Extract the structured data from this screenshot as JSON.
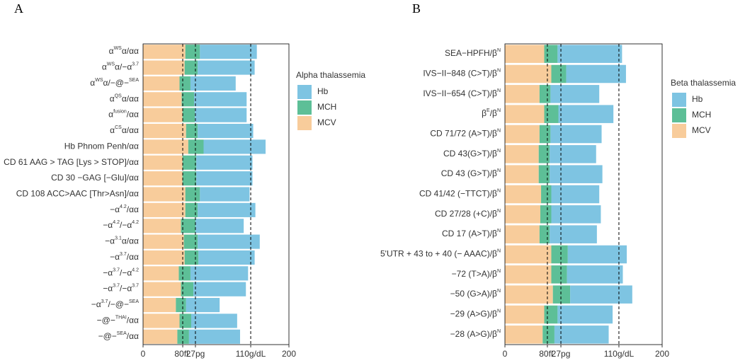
{
  "chart_data": [
    {
      "type": "bar",
      "orientation": "horizontal",
      "stacked": true,
      "title": "A",
      "legend_title": "Alpha thalassemia",
      "categories": [
        [
          "α",
          {
            "sup": "WS"
          },
          "α/αα"
        ],
        [
          "α",
          {
            "sup": "WS"
          },
          "α/−α",
          {
            "sup": "3.7"
          }
        ],
        [
          "α",
          {
            "sup": "WS"
          },
          "α/−@−",
          {
            "sup": "SEA"
          }
        ],
        [
          "α",
          {
            "sup": "QS"
          },
          "α/αα"
        ],
        [
          "α",
          {
            "sup": "fusion"
          },
          "/αα"
        ],
        [
          "α",
          {
            "sup": "CS"
          },
          "α/αα"
        ],
        [
          "Hb Phnom Penh/αα"
        ],
        [
          "CD 61 AAG > TAG [Lys > STOP]/αα"
        ],
        [
          "CD 30 −GAG [−Glu]/αα"
        ],
        [
          "CD 108 ACC>AAC [Thr>Asn]/αα"
        ],
        [
          "−α",
          {
            "sup": "4.2"
          },
          "/αα"
        ],
        [
          "−α",
          {
            "sup": "4.2"
          },
          "/−α",
          {
            "sup": "4.2"
          }
        ],
        [
          "−α",
          {
            "sup": "3.1"
          },
          "α/αα"
        ],
        [
          "−α",
          {
            "sup": "3.7"
          },
          "/αα"
        ],
        [
          "−α",
          {
            "sup": "3.7"
          },
          "/−α",
          {
            "sup": "4.2"
          }
        ],
        [
          "−α",
          {
            "sup": "3.7"
          },
          "/−α",
          {
            "sup": "3.7"
          }
        ],
        [
          "−α",
          {
            "sup": "3.7"
          },
          "/−@−",
          {
            "sup": "SEA"
          }
        ],
        [
          "−@−",
          {
            "sup": "THAI"
          },
          "/αα"
        ],
        [
          "−@−",
          {
            "sup": "SEA"
          },
          "/αα"
        ]
      ],
      "series": [
        {
          "name": "Hb",
          "color": "#7ec4e2",
          "values": [
            78,
            78,
            62,
            72,
            71,
            76,
            85,
            77,
            77,
            68,
            79,
            66,
            85,
            77,
            79,
            72,
            46,
            63,
            70
          ]
        },
        {
          "name": "MCH",
          "color": "#5dbf97",
          "values": [
            20,
            18,
            15,
            17,
            17,
            16,
            21,
            19,
            19,
            20,
            17,
            20,
            19,
            19,
            16,
            17,
            14,
            16,
            16
          ]
        },
        {
          "name": "MCV",
          "color": "#f8cc9b",
          "values": [
            58,
            57,
            50,
            53,
            54,
            59,
            62,
            54,
            54,
            58,
            58,
            52,
            56,
            57,
            49,
            52,
            45,
            50,
            47
          ]
        }
      ],
      "xlim": [
        0,
        200
      ],
      "xticks": [
        0,
        {
          "value": 54.4,
          "label": "80fL"
        },
        {
          "value": 71.8,
          "label": "27pg"
        },
        {
          "value": 147.6,
          "label": "110g/dL"
        },
        200
      ]
    },
    {
      "type": "bar",
      "orientation": "horizontal",
      "stacked": true,
      "title": "B",
      "legend_title": "Beta thalassemia",
      "categories": [
        [
          "SEA−HPFH/β",
          {
            "sup": "N"
          }
        ],
        [
          "IVS−II−848 (C>T)/β",
          {
            "sup": "N"
          }
        ],
        [
          "IVS−II−654 (C>T)/β",
          {
            "sup": "N"
          }
        ],
        [
          "β",
          {
            "sup": "E"
          },
          "/β",
          {
            "sup": "N"
          }
        ],
        [
          "CD 71/72 (A>T)/β",
          {
            "sup": "N"
          }
        ],
        [
          "CD 43(G>T)/β",
          {
            "sup": "N"
          }
        ],
        [
          "CD 43 (G>T)/β",
          {
            "sup": "N"
          }
        ],
        [
          "CD 41/42 (−TTCT)/β",
          {
            "sup": "N"
          }
        ],
        [
          "CD 27/28 (+C)/β",
          {
            "sup": "N"
          }
        ],
        [
          "CD 17 (A>T)/β",
          {
            "sup": "N"
          }
        ],
        [
          "5'UTR + 43 to + 40 (− AAAC)/β",
          {
            "sup": "N"
          }
        ],
        [
          "−72 (T>A)/β",
          {
            "sup": "N"
          }
        ],
        [
          "−50 (G>A)/β",
          {
            "sup": "N"
          }
        ],
        [
          "−29 (A>G)/β",
          {
            "sup": "N"
          }
        ],
        [
          "−28 (A>G)/β",
          {
            "sup": "N"
          }
        ]
      ],
      "series": [
        {
          "name": "Hb",
          "color": "#7ec4e2",
          "values": [
            82,
            76,
            62,
            70,
            65,
            59,
            67,
            61,
            63,
            60,
            75,
            71,
            79,
            70,
            69
          ]
        },
        {
          "name": "MCH",
          "color": "#5dbf97",
          "values": [
            17,
            19,
            14,
            18,
            14,
            14,
            14,
            13,
            14,
            13,
            21,
            20,
            22,
            17,
            15
          ]
        },
        {
          "name": "MCV",
          "color": "#f8cc9b",
          "values": [
            50,
            59,
            44,
            50,
            44,
            43,
            43,
            46,
            45,
            44,
            59,
            59,
            61,
            50,
            48
          ]
        }
      ],
      "xlim": [
        0,
        200
      ],
      "xticks": [
        0,
        {
          "value": 54,
          "label": "80fL"
        },
        {
          "value": 71.2,
          "label": "27pg"
        },
        {
          "value": 145,
          "label": "110g/dL"
        },
        200
      ]
    }
  ]
}
